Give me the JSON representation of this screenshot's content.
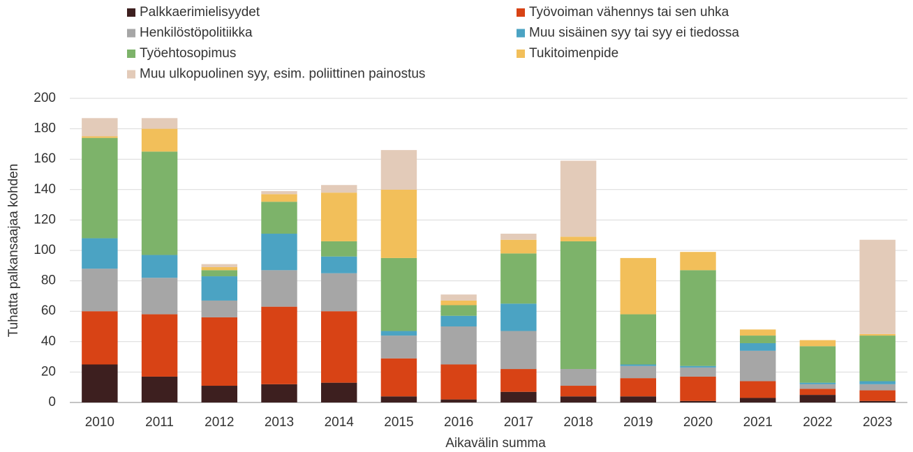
{
  "chart_data": {
    "type": "bar",
    "stacked": true,
    "x_label": "Aikavälin summa",
    "y_label": "Tuhatta palkansaajaa kohden",
    "categories": [
      "2010",
      "2011",
      "2012",
      "2013",
      "2014",
      "2015",
      "2016",
      "2017",
      "2018",
      "2019",
      "2020",
      "2021",
      "2022",
      "2023"
    ],
    "series": [
      {
        "name": "Palkkaerimielisyydet",
        "color": "#3d1f1f",
        "values": [
          25,
          17,
          11,
          12,
          13,
          4,
          2,
          7,
          4,
          4,
          1,
          3,
          5,
          1
        ]
      },
      {
        "name": "Työvoiman vähennys tai sen uhka",
        "color": "#d84315",
        "values": [
          35,
          41,
          45,
          51,
          47,
          25,
          23,
          15,
          7,
          12,
          16,
          11,
          4,
          7
        ]
      },
      {
        "name": "Henkilöstöpolitiikka",
        "color": "#a6a6a6",
        "values": [
          28,
          24,
          11,
          24,
          25,
          15,
          25,
          25,
          11,
          8,
          6,
          20,
          3,
          4
        ]
      },
      {
        "name": "Muu sisäinen syy tai syy ei tiedossa",
        "color": "#4ba3c3",
        "values": [
          20,
          15,
          16,
          24,
          11,
          3,
          7,
          18,
          0,
          1,
          1,
          5,
          1,
          2
        ]
      },
      {
        "name": "Työehtosopimus",
        "color": "#7db36a",
        "values": [
          66,
          68,
          4,
          21,
          10,
          48,
          7,
          33,
          84,
          33,
          63,
          5,
          24,
          30
        ]
      },
      {
        "name": "Tukitoimenpide",
        "color": "#f2bf5a",
        "values": [
          1,
          15,
          2,
          5,
          32,
          45,
          3,
          9,
          3,
          37,
          12,
          4,
          4,
          1
        ]
      },
      {
        "name": "Muu ulkopuolinen syy, esim. poliittinen painostus",
        "color": "#e3cbb9",
        "values": [
          12,
          7,
          2,
          2,
          5,
          26,
          4,
          4,
          50,
          0,
          0,
          0,
          0,
          62
        ]
      }
    ],
    "ylim": [
      0,
      200
    ],
    "yticks": [
      0,
      20,
      40,
      60,
      80,
      100,
      120,
      140,
      160,
      180,
      200
    ],
    "grid": true
  }
}
